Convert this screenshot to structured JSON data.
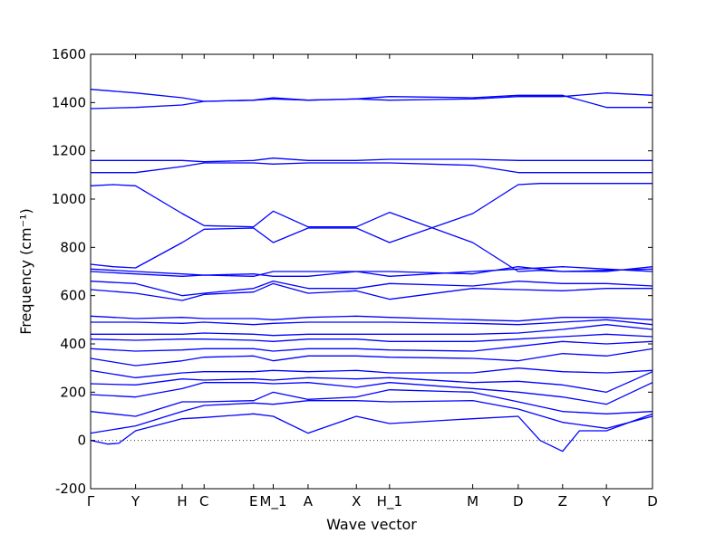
{
  "chart_data": {
    "type": "line",
    "xlabel": "Wave vector",
    "ylabel": "Frequency (cm⁻¹)",
    "ylim": [
      -200,
      1600
    ],
    "yticks": [
      -200,
      0,
      200,
      400,
      600,
      800,
      1000,
      1200,
      1400,
      1600
    ],
    "xlim": [
      0,
      1
    ],
    "qpoints": [
      {
        "label": "Γ",
        "x": 0.0
      },
      {
        "label": "Y",
        "x": 0.08
      },
      {
        "label": "H",
        "x": 0.163
      },
      {
        "label": "C",
        "x": 0.202
      },
      {
        "label": "E",
        "x": 0.29
      },
      {
        "label": "M_1",
        "x": 0.325
      },
      {
        "label": "A",
        "x": 0.387
      },
      {
        "label": "X",
        "x": 0.473
      },
      {
        "label": "H_1",
        "x": 0.532
      },
      {
        "label": "M",
        "x": 0.68
      },
      {
        "label": "D",
        "x": 0.761
      },
      {
        "label": "Z",
        "x": 0.84
      },
      {
        "label": "Y",
        "x": 0.918
      },
      {
        "label": "D",
        "x": 1.0
      }
    ],
    "zero_line": true,
    "grid": false,
    "color": "#0000ff",
    "series": [
      {
        "x": [
          0,
          0.03,
          0.05,
          0.08,
          0.163,
          0.202,
          0.29,
          0.325,
          0.387,
          0.473,
          0.532,
          0.68,
          0.761,
          0.8,
          0.84,
          0.87,
          0.918,
          1.0
        ],
        "y": [
          0,
          -15,
          -12,
          40,
          90,
          95,
          110,
          100,
          30,
          100,
          70,
          90,
          100,
          0,
          -45,
          40,
          40,
          110
        ]
      },
      {
        "x": [
          0,
          0.08,
          0.163,
          0.202,
          0.29,
          0.325,
          0.387,
          0.473,
          0.532,
          0.68,
          0.761,
          0.84,
          0.918,
          1.0
        ],
        "y": [
          30,
          60,
          120,
          145,
          155,
          150,
          165,
          165,
          160,
          165,
          130,
          75,
          50,
          100
        ]
      },
      {
        "x": [
          0,
          0.08,
          0.163,
          0.202,
          0.29,
          0.325,
          0.387,
          0.473,
          0.532,
          0.68,
          0.761,
          0.84,
          0.918,
          1.0
        ],
        "y": [
          120,
          100,
          160,
          160,
          165,
          200,
          170,
          180,
          210,
          200,
          160,
          120,
          110,
          120
        ]
      },
      {
        "x": [
          0,
          0.08,
          0.163,
          0.202,
          0.29,
          0.325,
          0.387,
          0.473,
          0.532,
          0.68,
          0.761,
          0.84,
          0.918,
          1.0
        ],
        "y": [
          190,
          180,
          215,
          240,
          240,
          235,
          240,
          220,
          240,
          215,
          200,
          180,
          150,
          240
        ]
      },
      {
        "x": [
          0,
          0.08,
          0.163,
          0.202,
          0.29,
          0.325,
          0.387,
          0.473,
          0.532,
          0.68,
          0.761,
          0.84,
          0.918,
          1.0
        ],
        "y": [
          235,
          230,
          255,
          250,
          255,
          250,
          260,
          255,
          260,
          240,
          245,
          230,
          200,
          285
        ]
      },
      {
        "x": [
          0,
          0.08,
          0.163,
          0.202,
          0.29,
          0.325,
          0.387,
          0.473,
          0.532,
          0.68,
          0.761,
          0.84,
          0.918,
          1.0
        ],
        "y": [
          290,
          260,
          280,
          285,
          285,
          290,
          285,
          290,
          280,
          280,
          300,
          285,
          280,
          290
        ]
      },
      {
        "x": [
          0,
          0.08,
          0.163,
          0.202,
          0.29,
          0.325,
          0.387,
          0.473,
          0.532,
          0.68,
          0.761,
          0.84,
          0.918,
          1.0
        ],
        "y": [
          340,
          310,
          330,
          345,
          350,
          330,
          350,
          350,
          345,
          340,
          330,
          360,
          350,
          380
        ]
      },
      {
        "x": [
          0,
          0.08,
          0.163,
          0.202,
          0.29,
          0.325,
          0.387,
          0.473,
          0.532,
          0.68,
          0.761,
          0.84,
          0.918,
          1.0
        ],
        "y": [
          380,
          370,
          375,
          380,
          380,
          370,
          380,
          380,
          375,
          370,
          390,
          410,
          400,
          410
        ]
      },
      {
        "x": [
          0,
          0.08,
          0.163,
          0.202,
          0.29,
          0.325,
          0.387,
          0.473,
          0.532,
          0.68,
          0.761,
          0.84,
          0.918,
          1.0
        ],
        "y": [
          420,
          415,
          420,
          420,
          415,
          410,
          420,
          420,
          410,
          410,
          420,
          430,
          440,
          430
        ]
      },
      {
        "x": [
          0,
          0.08,
          0.163,
          0.202,
          0.29,
          0.325,
          0.387,
          0.473,
          0.532,
          0.68,
          0.761,
          0.84,
          0.918,
          1.0
        ],
        "y": [
          440,
          440,
          440,
          445,
          440,
          435,
          440,
          440,
          440,
          440,
          445,
          460,
          480,
          460
        ]
      },
      {
        "x": [
          0,
          0.08,
          0.163,
          0.202,
          0.29,
          0.325,
          0.387,
          0.473,
          0.532,
          0.68,
          0.761,
          0.84,
          0.918,
          1.0
        ],
        "y": [
          490,
          490,
          485,
          490,
          480,
          485,
          490,
          490,
          490,
          485,
          480,
          490,
          500,
          480
        ]
      },
      {
        "x": [
          0,
          0.08,
          0.163,
          0.202,
          0.29,
          0.325,
          0.387,
          0.473,
          0.532,
          0.68,
          0.761,
          0.84,
          0.918,
          1.0
        ],
        "y": [
          515,
          505,
          510,
          505,
          505,
          500,
          510,
          515,
          510,
          500,
          495,
          510,
          510,
          500
        ]
      },
      {
        "x": [
          0,
          0.08,
          0.163,
          0.202,
          0.29,
          0.325,
          0.387,
          0.473,
          0.532,
          0.68,
          0.761,
          0.84,
          0.918,
          1.0
        ],
        "y": [
          625,
          610,
          580,
          605,
          615,
          650,
          610,
          620,
          585,
          630,
          625,
          620,
          630,
          630
        ]
      },
      {
        "x": [
          0,
          0.08,
          0.163,
          0.202,
          0.29,
          0.325,
          0.387,
          0.473,
          0.532,
          0.68,
          0.761,
          0.84,
          0.918,
          1.0
        ],
        "y": [
          660,
          650,
          600,
          610,
          630,
          660,
          630,
          630,
          650,
          640,
          660,
          650,
          650,
          640
        ]
      },
      {
        "x": [
          0,
          0.08,
          0.163,
          0.202,
          0.29,
          0.325,
          0.387,
          0.473,
          0.532,
          0.68,
          0.761,
          0.84,
          0.918,
          1.0
        ],
        "y": [
          700,
          690,
          680,
          685,
          680,
          700,
          700,
          700,
          680,
          700,
          710,
          720,
          710,
          700
        ]
      },
      {
        "x": [
          0,
          0.08,
          0.163,
          0.202,
          0.29,
          0.325,
          0.387,
          0.473,
          0.532,
          0.68,
          0.761,
          0.84,
          0.918,
          1.0
        ],
        "y": [
          710,
          700,
          690,
          685,
          690,
          680,
          680,
          700,
          700,
          690,
          720,
          700,
          700,
          720
        ]
      },
      {
        "x": [
          0,
          0.04,
          0.08,
          0.163,
          0.202,
          0.29,
          0.325,
          0.387,
          0.473,
          0.532,
          0.68,
          0.761,
          0.8,
          0.84,
          0.918,
          1.0
        ],
        "y": [
          730,
          720,
          715,
          820,
          875,
          880,
          820,
          880,
          880,
          820,
          940,
          1060,
          1065,
          1065,
          1065,
          1065
        ]
      },
      {
        "x": [
          0,
          0.04,
          0.08,
          0.163,
          0.202,
          0.29,
          0.325,
          0.387,
          0.473,
          0.532,
          0.68,
          0.761,
          0.8,
          0.84,
          0.918,
          1.0
        ],
        "y": [
          1055,
          1060,
          1055,
          940,
          890,
          885,
          950,
          885,
          885,
          945,
          820,
          700,
          705,
          700,
          705,
          710
        ]
      },
      {
        "x": [
          0,
          0.08,
          0.163,
          0.202,
          0.29,
          0.325,
          0.387,
          0.473,
          0.532,
          0.68,
          0.761,
          0.84,
          0.918,
          1.0
        ],
        "y": [
          1110,
          1110,
          1135,
          1150,
          1150,
          1145,
          1150,
          1150,
          1150,
          1140,
          1110,
          1110,
          1110,
          1110
        ]
      },
      {
        "x": [
          0,
          0.08,
          0.163,
          0.202,
          0.29,
          0.325,
          0.387,
          0.473,
          0.532,
          0.68,
          0.761,
          0.84,
          0.918,
          1.0
        ],
        "y": [
          1160,
          1160,
          1160,
          1155,
          1160,
          1170,
          1160,
          1160,
          1165,
          1165,
          1160,
          1160,
          1160,
          1160
        ]
      },
      {
        "x": [
          0,
          0.08,
          0.163,
          0.202,
          0.29,
          0.325,
          0.387,
          0.473,
          0.532,
          0.68,
          0.761,
          0.84,
          0.918,
          1.0
        ],
        "y": [
          1375,
          1380,
          1390,
          1405,
          1410,
          1415,
          1410,
          1415,
          1410,
          1415,
          1425,
          1425,
          1440,
          1430
        ]
      },
      {
        "x": [
          0,
          0.08,
          0.163,
          0.202,
          0.29,
          0.325,
          0.387,
          0.473,
          0.532,
          0.68,
          0.761,
          0.84,
          0.918,
          1.0
        ],
        "y": [
          1455,
          1440,
          1420,
          1405,
          1410,
          1420,
          1410,
          1415,
          1425,
          1420,
          1430,
          1430,
          1380,
          1380
        ]
      }
    ]
  }
}
